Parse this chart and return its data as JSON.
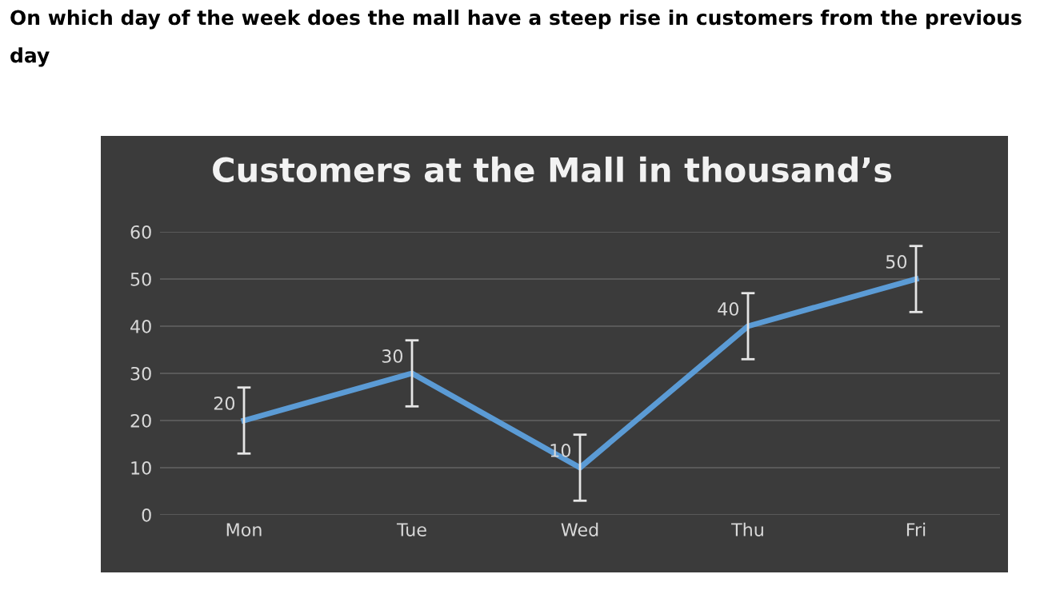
{
  "chart_data": {
    "type": "line",
    "title": "Customers at the Mall in thousand’s",
    "annotations": [
      "On which day of the week does the mall have a steep rise in customers from the previous day"
    ],
    "categories": [
      "Mon",
      "Tue",
      "Wed",
      "Thu",
      "Fri"
    ],
    "series": [
      {
        "color": "#5b9bd5",
        "values": [
          20,
          30,
          10,
          40,
          50
        ],
        "errors": [
          7,
          7,
          7,
          7,
          7
        ]
      }
    ],
    "ylim": [
      0,
      60
    ],
    "yticks": [
      0,
      10,
      20,
      30,
      40,
      50,
      60
    ],
    "grid": "y",
    "data_labels": true,
    "marker": "none",
    "line_style": "solid"
  }
}
